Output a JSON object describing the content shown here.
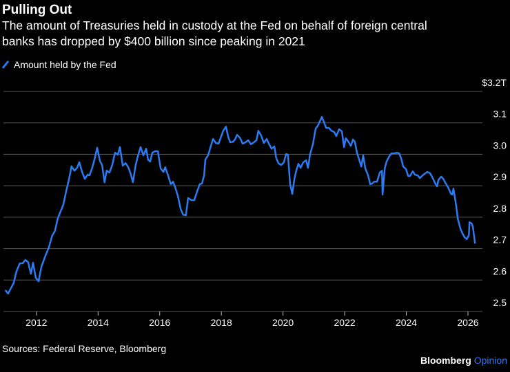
{
  "chart_data": {
    "type": "line",
    "title": "Pulling Out",
    "subtitle": [
      "The amount of Treasuries held in custody at the Fed on behalf of foreign central",
      "banks has dropped by $400 billion since peaking in 2021"
    ],
    "source": "Sources: Federal Reserve, Bloomberg",
    "logo": {
      "name": "Bloomberg",
      "section": "Opinion"
    },
    "legend": "top-left",
    "grid": true,
    "xlim": [
      2010.93,
      2026.47
    ],
    "xticks": [
      2012,
      2014,
      2016,
      2018,
      2020,
      2022,
      2024,
      2026
    ],
    "ylim": [
      2.5,
      3.2
    ],
    "yticks": [
      2.5,
      2.6,
      2.7,
      2.8,
      2.9,
      {
        "value": 3,
        "label": "3.0"
      },
      3.1,
      {
        "value": 3.2,
        "label": "$3.2T"
      }
    ],
    "x": [
      2010.99,
      2011.08,
      2011.22,
      2011.26,
      2011.35,
      2011.46,
      2011.55,
      2011.64,
      2011.73,
      2011.82,
      2011.89,
      2011.98,
      2012.07,
      2012.16,
      2012.29,
      2012.4,
      2012.51,
      2012.6,
      2012.69,
      2012.76,
      2012.87,
      2012.98,
      2013.05,
      2013.14,
      2013.23,
      2013.32,
      2013.39,
      2013.48,
      2013.57,
      2013.66,
      2013.72,
      2013.81,
      2013.9,
      2013.97,
      2014.06,
      2014.13,
      2014.21,
      2014.28,
      2014.37,
      2014.46,
      2014.55,
      2014.64,
      2014.71,
      2014.8,
      2014.89,
      2014.98,
      2015.06,
      2015.13,
      2015.22,
      2015.29,
      2015.38,
      2015.47,
      2015.56,
      2015.62,
      2015.69,
      2015.76,
      2015.85,
      2015.94,
      2016.03,
      2016.12,
      2016.18,
      2016.27,
      2016.36,
      2016.43,
      2016.5,
      2016.59,
      2016.68,
      2016.76,
      2016.85,
      2016.92,
      2017.03,
      2017.12,
      2017.21,
      2017.3,
      2017.37,
      2017.44,
      2017.48,
      2017.57,
      2017.66,
      2017.73,
      2017.82,
      2017.91,
      2017.97,
      2018.06,
      2018.15,
      2018.22,
      2018.29,
      2018.38,
      2018.44,
      2018.51,
      2018.6,
      2018.69,
      2018.78,
      2018.87,
      2018.96,
      2019.05,
      2019.14,
      2019.2,
      2019.29,
      2019.38,
      2019.47,
      2019.54,
      2019.63,
      2019.72,
      2019.78,
      2019.85,
      2019.94,
      2020.03,
      2020.1,
      2020.16,
      2020.23,
      2020.3,
      2020.37,
      2020.43,
      2020.5,
      2020.57,
      2020.66,
      2020.75,
      2020.81,
      2020.88,
      2020.97,
      2021.06,
      2021.13,
      2021.19,
      2021.26,
      2021.33,
      2021.4,
      2021.49,
      2021.57,
      2021.66,
      2021.73,
      2021.82,
      2021.91,
      2021.98,
      2022.04,
      2022.11,
      2022.2,
      2022.27,
      2022.33,
      2022.4,
      2022.47,
      2022.54,
      2022.6,
      2022.67,
      2022.76,
      2022.83,
      2022.89,
      2022.96,
      2023.05,
      2023.14,
      2023.21,
      2023.23,
      2023.3,
      2023.36,
      2023.45,
      2023.52,
      2023.61,
      2023.7,
      2023.77,
      2023.83,
      2023.9,
      2023.99,
      2024.06,
      2024.12,
      2024.21,
      2024.28,
      2024.37,
      2024.44,
      2024.53,
      2024.62,
      2024.68,
      2024.77,
      2024.86,
      2024.93,
      2025.0,
      2025.04,
      2025.13,
      2025.2,
      2025.27,
      2025.36,
      2025.45,
      2025.49,
      2025.53,
      2025.62,
      2025.67,
      2025.76,
      2025.82,
      2025.89,
      2025.96,
      2026.03,
      2026.05,
      2026.12,
      2026.16,
      2026.23
    ],
    "series": [
      {
        "name": "Amount held by the Fed",
        "color": "#2b7bf2",
        "values": [
          2.568,
          2.557,
          2.583,
          2.59,
          2.627,
          2.653,
          2.653,
          2.664,
          2.657,
          2.62,
          2.655,
          2.607,
          2.596,
          2.642,
          2.677,
          2.703,
          2.741,
          2.756,
          2.795,
          2.813,
          2.839,
          2.889,
          2.918,
          2.962,
          2.948,
          2.957,
          2.975,
          2.944,
          2.922,
          2.935,
          2.933,
          2.957,
          2.99,
          3.021,
          2.979,
          2.966,
          2.911,
          2.948,
          2.942,
          2.966,
          3.005,
          2.999,
          3.023,
          2.964,
          2.972,
          2.959,
          2.937,
          2.911,
          2.966,
          2.994,
          3.023,
          2.997,
          3.018,
          2.983,
          2.977,
          3.005,
          3.01,
          3.01,
          2.955,
          2.944,
          2.959,
          2.933,
          2.905,
          2.913,
          2.896,
          2.867,
          2.826,
          2.808,
          2.806,
          2.861,
          2.854,
          2.854,
          2.881,
          2.905,
          2.907,
          2.933,
          2.983,
          2.997,
          3.027,
          3.049,
          3.036,
          3.034,
          3.051,
          3.075,
          3.088,
          3.056,
          3.038,
          3.04,
          3.047,
          3.062,
          3.053,
          3.034,
          3.038,
          3.045,
          3.032,
          3.038,
          3.045,
          3.075,
          3.06,
          3.036,
          3.049,
          3.034,
          3.018,
          3.025,
          2.988,
          2.972,
          2.966,
          2.975,
          3.001,
          2.999,
          2.905,
          2.874,
          2.922,
          2.948,
          2.97,
          2.957,
          2.975,
          2.981,
          2.957,
          3.001,
          3.032,
          3.082,
          3.091,
          3.104,
          3.119,
          3.102,
          3.084,
          3.084,
          3.075,
          3.071,
          3.058,
          3.08,
          3.073,
          3.023,
          3.051,
          3.042,
          3.027,
          3.047,
          3.04,
          3.005,
          2.983,
          2.961,
          2.997,
          2.955,
          2.933,
          2.905,
          2.907,
          2.913,
          2.913,
          2.942,
          2.948,
          2.872,
          2.955,
          2.977,
          2.994,
          3.003,
          3.003,
          3.005,
          3.003,
          2.988,
          2.961,
          2.953,
          2.931,
          2.931,
          2.946,
          2.935,
          2.933,
          2.924,
          2.933,
          2.94,
          2.944,
          2.94,
          2.924,
          2.909,
          2.898,
          2.918,
          2.929,
          2.922,
          2.909,
          2.894,
          2.874,
          2.872,
          2.891,
          2.835,
          2.795,
          2.762,
          2.749,
          2.736,
          2.73,
          2.743,
          2.784,
          2.78,
          2.769,
          2.716
        ]
      }
    ]
  }
}
